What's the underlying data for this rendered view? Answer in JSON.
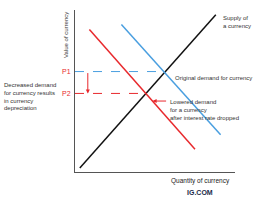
{
  "chart_data": {
    "type": "line",
    "x_label": "Quantity of currency",
    "y_label": "Value of currency",
    "xlim": [
      0,
      10
    ],
    "ylim": [
      0,
      10
    ],
    "xticks": [],
    "yticks": [
      {
        "value": 6.2,
        "label": "P1"
      },
      {
        "value": 4.85,
        "label": "P2"
      }
    ],
    "tick_labels": "y",
    "grid": false,
    "series": [
      {
        "color": "#111111",
        "line_style": "solid",
        "x": [
          0.3,
          8.8
        ],
        "values": [
          0.25,
          9.7
        ]
      },
      {
        "color": "#4a9fe0",
        "line_style": "solid",
        "x": [
          2.9,
          9.1
        ],
        "values": [
          9.1,
          2.3
        ]
      },
      {
        "color": "#e8292d",
        "line_style": "solid",
        "x": [
          0.9,
          7.5
        ],
        "values": [
          8.8,
          1.4
        ]
      },
      {
        "color": "#4a9fe0",
        "line_style": "dashed",
        "x": [
          0,
          5.6
        ],
        "values": [
          6.2,
          6.2
        ]
      },
      {
        "color": "#e8292d",
        "line_style": "dashed",
        "x": [
          0,
          4.4
        ],
        "values": [
          4.85,
          4.85
        ]
      }
    ],
    "annotations": {
      "supply": [
        "Supply of",
        "a currency"
      ],
      "original": [
        "Original demand for currency"
      ],
      "lowered": [
        "Lowered demand",
        "for a currency",
        "after interest rate dropped"
      ],
      "note": [
        "Decreased demand",
        "for currency results",
        "in currency",
        "depreciation"
      ]
    },
    "source": "IG.COM"
  }
}
